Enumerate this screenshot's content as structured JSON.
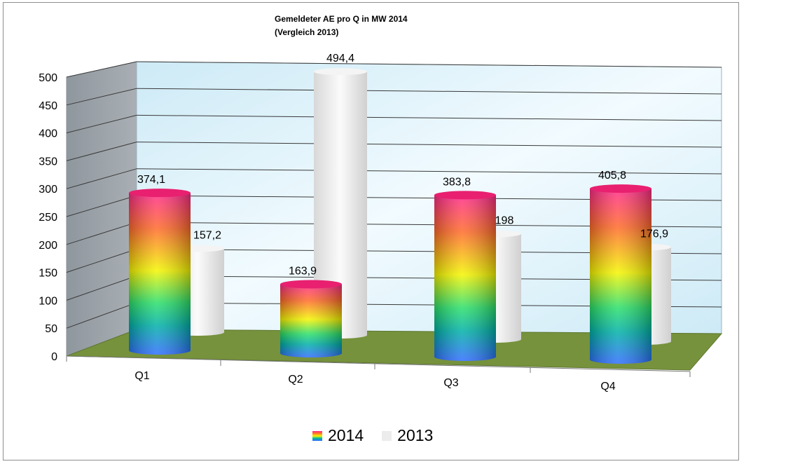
{
  "chart_data": {
    "type": "bar",
    "title": "Gemeldeter AE  pro Q in MW 2014\n(Vergleich 2013)",
    "categories": [
      "Q1",
      "Q2",
      "Q3",
      "Q4"
    ],
    "series": [
      {
        "name": "2014",
        "values": [
          374.1,
          163.9,
          383.8,
          405.8
        ],
        "labels": [
          "374,1",
          "163,9",
          "383,8",
          "405,8"
        ],
        "style": "rainbow-gradient"
      },
      {
        "name": "2013",
        "values": [
          157.2,
          494.4,
          198,
          176.9
        ],
        "labels": [
          "157,2",
          "494,4",
          "198",
          "176,9"
        ],
        "color": "#ececec"
      }
    ],
    "yticks": [
      "0",
      "50",
      "100",
      "150",
      "200",
      "250",
      "300",
      "350",
      "400",
      "450",
      "500"
    ],
    "ylim": [
      0,
      500
    ],
    "grid": true,
    "legend_position": "bottom",
    "colors": {
      "wall_back": "#e6f6fd",
      "wall_side": "#9aa1a8",
      "floor": "#76923c",
      "bar_2013": "#ececec"
    }
  }
}
